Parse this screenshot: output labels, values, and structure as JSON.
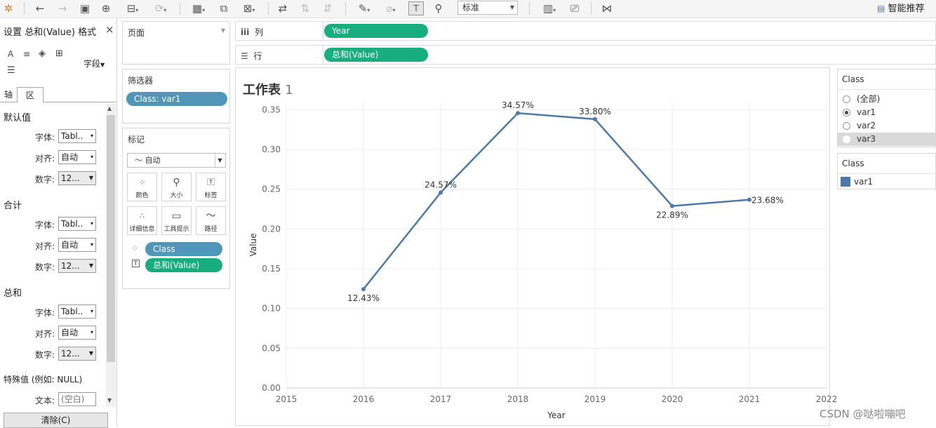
{
  "toolbar": {
    "view_mode": "标准",
    "recommend_label": "智能推荐"
  },
  "format_pane": {
    "title": "设置 总和(Value) 格式",
    "close_glyph": "×",
    "field_label": "字段",
    "tabs": [
      "轴",
      "区"
    ],
    "sections": {
      "default": {
        "title": "默认值",
        "font_label": "字体:",
        "font_value": "Tabl..",
        "align_label": "对齐:",
        "align_value": "自动",
        "number_label": "数字:",
        "number_value": "12..."
      },
      "totals": {
        "title": "合计",
        "font_label": "字体:",
        "font_value": "Tabl..",
        "align_label": "对齐:",
        "align_value": "自动",
        "number_label": "数字:",
        "number_value": "12..."
      },
      "grand_totals": {
        "title": "总和",
        "font_label": "字体:",
        "font_value": "Tabl..",
        "align_label": "对齐:",
        "align_value": "自动",
        "number_label": "数字:",
        "number_value": "12..."
      }
    },
    "special_values_title": "特殊值 (例如: NULL)",
    "text_label": "文本:",
    "text_placeholder": "(空白)",
    "clear_button": "清除(C)"
  },
  "pages_card": {
    "title": "页面"
  },
  "filters_card": {
    "title": "筛选器",
    "pill": "Class: var1"
  },
  "marks_card": {
    "title": "标记",
    "mark_type": "自动",
    "buttons": [
      "颜色",
      "大小",
      "标签",
      "详细信息",
      "工具提示",
      "路径"
    ],
    "color_pill": "Class",
    "label_pill": "总和(Value)"
  },
  "shelves": {
    "columns_label": "列",
    "columns_pill": "Year",
    "rows_label": "行",
    "rows_pill": "总和(Value)"
  },
  "sheet": {
    "title": "工作表",
    "title_num": "1"
  },
  "filter_legend": {
    "title": "Class",
    "options": [
      "(全部)",
      "var1",
      "var2",
      "var3"
    ],
    "selected": "var1",
    "highlighted": "var3"
  },
  "color_legend": {
    "title": "Class",
    "items": [
      {
        "label": "var1",
        "color": "#4e79a7"
      }
    ]
  },
  "watermark": "CSDN @哒啦嘣吧",
  "chart_data": {
    "type": "line",
    "xlabel": "Year",
    "ylabel": "Value",
    "x_ticks": [
      "2015",
      "2016",
      "2017",
      "2018",
      "2019",
      "2020",
      "2021",
      "2022"
    ],
    "y_ticks": [
      "0.00",
      "0.05",
      "0.10",
      "0.15",
      "0.20",
      "0.25",
      "0.30",
      "0.35"
    ],
    "xlim": [
      2015,
      2022
    ],
    "ylim": [
      0,
      0.36
    ],
    "grid": true,
    "series": [
      {
        "name": "var1",
        "color": "#4e79a7",
        "x": [
          2016,
          2017,
          2018,
          2019,
          2020,
          2021
        ],
        "y": [
          0.1243,
          0.2457,
          0.3457,
          0.338,
          0.2289,
          0.2368
        ],
        "labels": [
          "12.43%",
          "24.57%",
          "34.57%",
          "33.80%",
          "22.89%",
          "23.68%"
        ]
      }
    ]
  }
}
